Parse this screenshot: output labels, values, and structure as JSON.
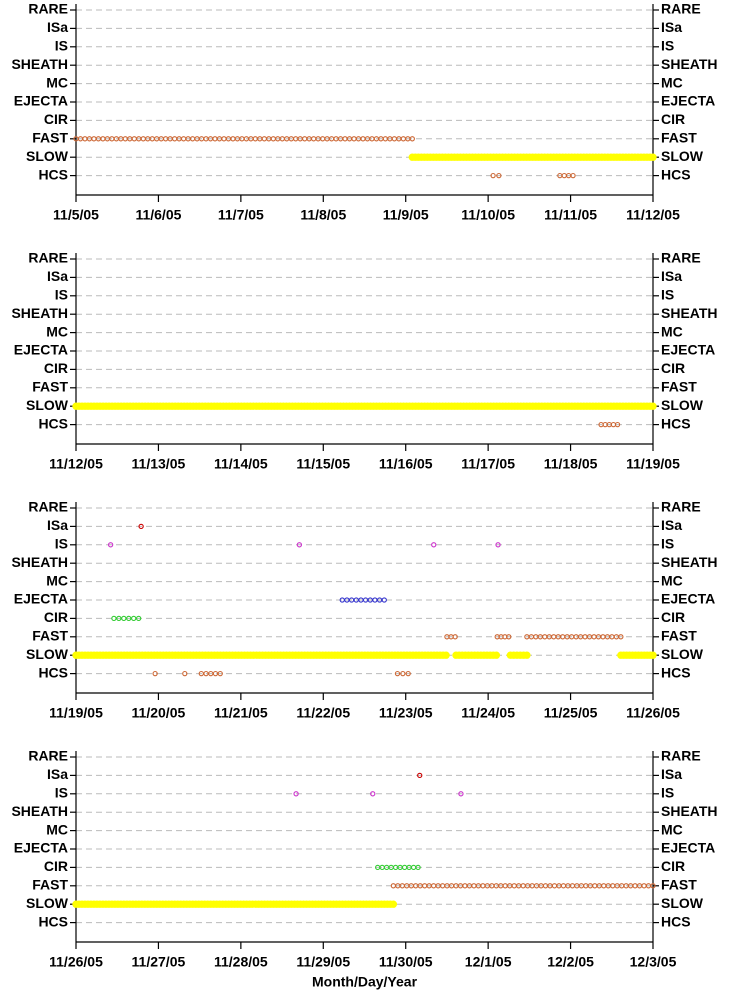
{
  "chart_data": [
    {
      "type": "interval",
      "categories": [
        "RARE",
        "ISa",
        "IS",
        "SHEATH",
        "MC",
        "EJECTA",
        "CIR",
        "FAST",
        "SLOW",
        "HCS"
      ],
      "xlim": [
        0,
        7
      ],
      "xticks": [
        {
          "value": 0,
          "label": "11/5/05"
        },
        {
          "value": 1,
          "label": "11/6/05"
        },
        {
          "value": 2,
          "label": "11/7/05"
        },
        {
          "value": 3,
          "label": "11/8/05"
        },
        {
          "value": 4,
          "label": "11/9/05"
        },
        {
          "value": 5,
          "label": "11/10/05"
        },
        {
          "value": 6,
          "label": "11/11/05"
        },
        {
          "value": 7,
          "label": "11/12/05"
        }
      ],
      "series": [
        {
          "name": "FAST",
          "color": "#cc6633",
          "intervals": [
            [
              0,
              4.08
            ]
          ]
        },
        {
          "name": "SLOW",
          "color": "#ffff00",
          "intervals": [
            [
              4.08,
              7
            ]
          ]
        },
        {
          "name": "HCS",
          "color": "#cc6633",
          "intervals": [
            [
              5.06,
              5.13
            ],
            [
              5.87,
              6.03
            ]
          ]
        }
      ]
    },
    {
      "type": "interval",
      "categories": [
        "RARE",
        "ISa",
        "IS",
        "SHEATH",
        "MC",
        "EJECTA",
        "CIR",
        "FAST",
        "SLOW",
        "HCS"
      ],
      "xlim": [
        0,
        7
      ],
      "xticks": [
        {
          "value": 0,
          "label": "11/12/05"
        },
        {
          "value": 1,
          "label": "11/13/05"
        },
        {
          "value": 2,
          "label": "11/14/05"
        },
        {
          "value": 3,
          "label": "11/15/05"
        },
        {
          "value": 4,
          "label": "11/16/05"
        },
        {
          "value": 5,
          "label": "11/17/05"
        },
        {
          "value": 6,
          "label": "11/18/05"
        },
        {
          "value": 7,
          "label": "11/19/05"
        }
      ],
      "series": [
        {
          "name": "SLOW",
          "color": "#ffff00",
          "intervals": [
            [
              0,
              7
            ]
          ]
        },
        {
          "name": "HCS",
          "color": "#cc6633",
          "intervals": [
            [
              6.37,
              6.57
            ]
          ]
        }
      ]
    },
    {
      "type": "interval",
      "categories": [
        "RARE",
        "ISa",
        "IS",
        "SHEATH",
        "MC",
        "EJECTA",
        "CIR",
        "FAST",
        "SLOW",
        "HCS"
      ],
      "xlim": [
        0,
        7
      ],
      "xticks": [
        {
          "value": 0,
          "label": "11/19/05"
        },
        {
          "value": 1,
          "label": "11/20/05"
        },
        {
          "value": 2,
          "label": "11/21/05"
        },
        {
          "value": 3,
          "label": "11/22/05"
        },
        {
          "value": 4,
          "label": "11/23/05"
        },
        {
          "value": 5,
          "label": "11/24/05"
        },
        {
          "value": 6,
          "label": "11/25/05"
        },
        {
          "value": 7,
          "label": "11/26/05"
        }
      ],
      "series": [
        {
          "name": "ISa",
          "color": "#cc0000",
          "intervals": [
            [
              0.79,
              0.79
            ]
          ]
        },
        {
          "name": "IS",
          "color": "#cc33cc",
          "intervals": [
            [
              0.42,
              0.42
            ],
            [
              2.71,
              2.71
            ],
            [
              4.34,
              4.34
            ],
            [
              5.12,
              5.12
            ]
          ]
        },
        {
          "name": "EJECTA",
          "color": "#3333cc",
          "intervals": [
            [
              3.23,
              3.74
            ]
          ]
        },
        {
          "name": "CIR",
          "color": "#33cc33",
          "intervals": [
            [
              0.46,
              0.76
            ]
          ]
        },
        {
          "name": "FAST",
          "color": "#cc6633",
          "intervals": [
            [
              4.5,
              4.6
            ],
            [
              5.11,
              5.25
            ],
            [
              5.47,
              6.61
            ]
          ]
        },
        {
          "name": "SLOW",
          "color": "#ffff00",
          "intervals": [
            [
              0,
              4.49
            ],
            [
              4.61,
              5.1
            ],
            [
              5.27,
              5.47
            ],
            [
              6.61,
              7
            ]
          ]
        },
        {
          "name": "HCS",
          "color": "#cc6633",
          "intervals": [
            [
              0.96,
              0.96
            ],
            [
              1.32,
              1.32
            ],
            [
              1.52,
              1.75
            ],
            [
              3.9,
              4.03
            ]
          ]
        }
      ]
    },
    {
      "type": "interval",
      "categories": [
        "RARE",
        "ISa",
        "IS",
        "SHEATH",
        "MC",
        "EJECTA",
        "CIR",
        "FAST",
        "SLOW",
        "HCS"
      ],
      "xlim": [
        0,
        7
      ],
      "xticks": [
        {
          "value": 0,
          "label": "11/26/05"
        },
        {
          "value": 1,
          "label": "11/27/05"
        },
        {
          "value": 2,
          "label": "11/28/05"
        },
        {
          "value": 3,
          "label": "11/29/05"
        },
        {
          "value": 4,
          "label": "11/30/05"
        },
        {
          "value": 5,
          "label": "12/1/05"
        },
        {
          "value": 6,
          "label": "12/2/05"
        },
        {
          "value": 7,
          "label": "12/3/05"
        }
      ],
      "x_label": "Month/Day/Year",
      "series": [
        {
          "name": "ISa",
          "color": "#cc0000",
          "intervals": [
            [
              4.17,
              4.17
            ]
          ]
        },
        {
          "name": "IS",
          "color": "#cc33cc",
          "intervals": [
            [
              2.67,
              2.67
            ],
            [
              3.6,
              3.6
            ],
            [
              4.67,
              4.67
            ]
          ]
        },
        {
          "name": "CIR",
          "color": "#33cc33",
          "intervals": [
            [
              3.66,
              4.15
            ]
          ]
        },
        {
          "name": "FAST",
          "color": "#cc6633",
          "intervals": [
            [
              3.85,
              7
            ]
          ]
        },
        {
          "name": "SLOW",
          "color": "#ffff00",
          "intervals": [
            [
              0,
              3.85
            ]
          ]
        }
      ]
    }
  ]
}
